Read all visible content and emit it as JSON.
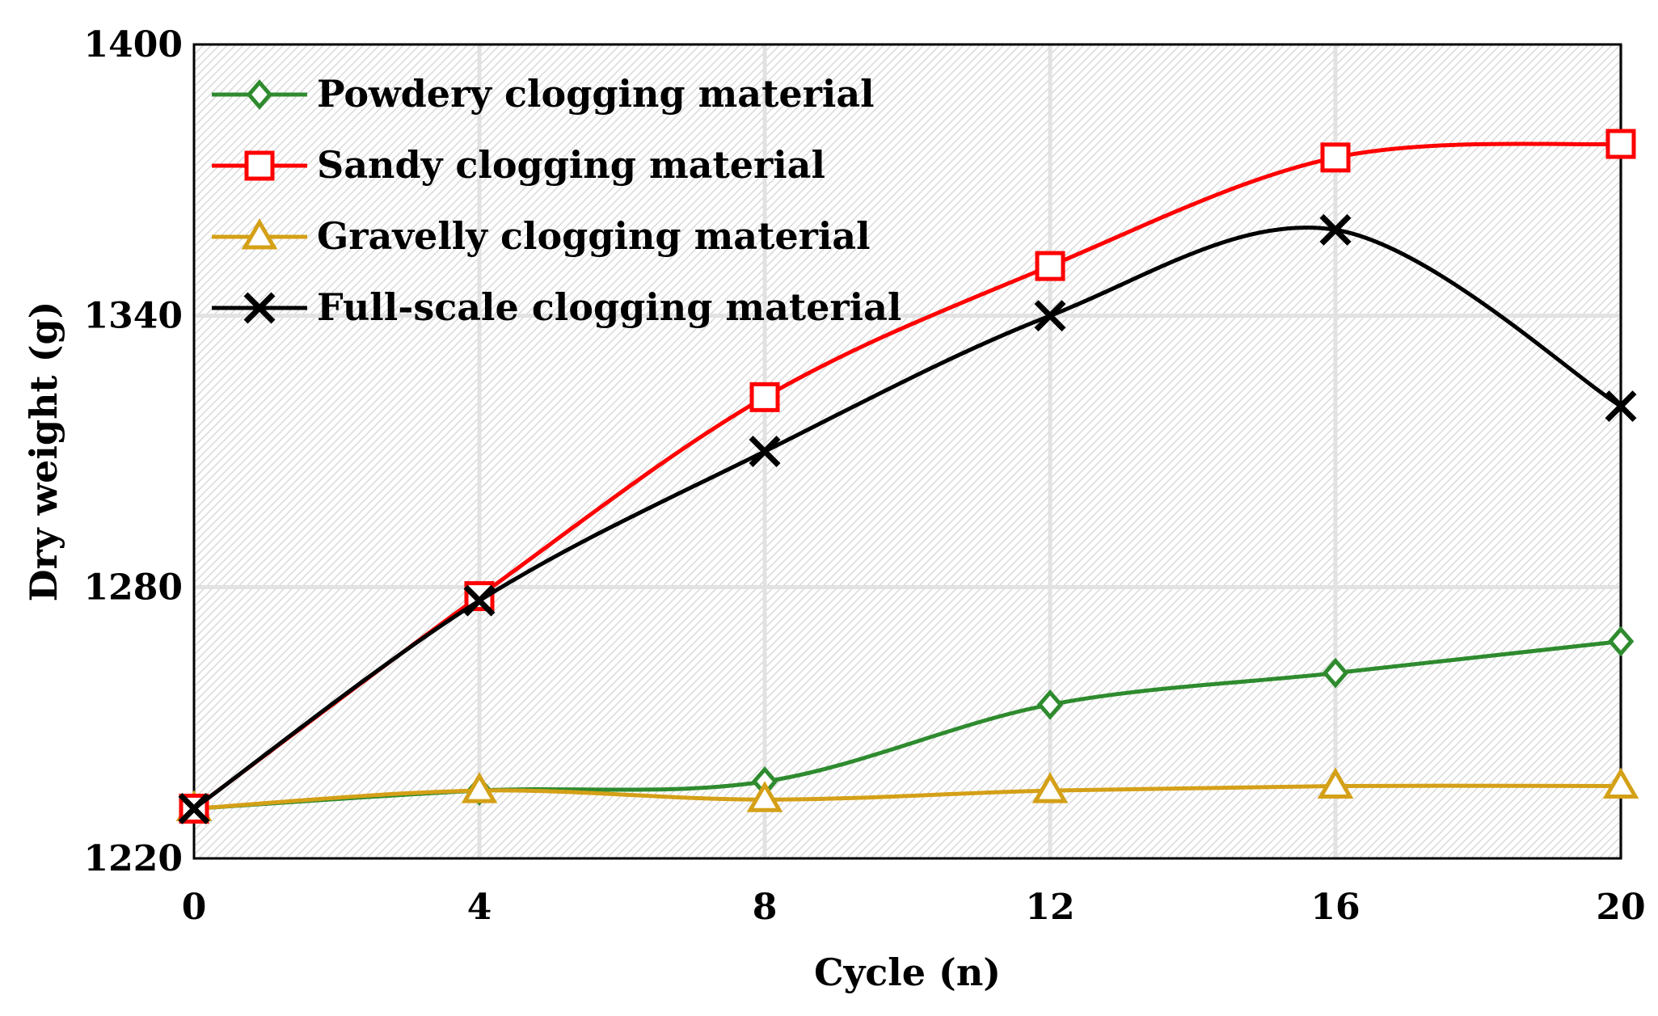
{
  "chart_data": {
    "type": "line",
    "title": "",
    "xlabel": "Cycle (n)",
    "ylabel": "Dry weight (g)",
    "x": [
      0,
      4,
      8,
      12,
      16,
      20
    ],
    "x_ticks": [
      "0",
      "4",
      "8",
      "12",
      "16",
      "20"
    ],
    "y_ticks": [
      "1220",
      "1280",
      "1340",
      "1400"
    ],
    "xlim": [
      0,
      20
    ],
    "ylim": [
      1220,
      1400
    ],
    "grid": true,
    "background": "hatched",
    "legend_position": "top-left",
    "smooth": true,
    "series": [
      {
        "name": "Powdery clogging material",
        "color": "#2e8b2e",
        "marker": "diamond",
        "values": [
          1231,
          1235,
          1237,
          1254,
          1261,
          1268
        ]
      },
      {
        "name": "Sandy clogging material",
        "color": "#ff0000",
        "marker": "square",
        "values": [
          1231,
          1278,
          1322,
          1351,
          1375,
          1378
        ]
      },
      {
        "name": "Gravelly clogging material",
        "color": "#d4a017",
        "marker": "triangle",
        "values": [
          1231,
          1235,
          1233,
          1235,
          1236,
          1236
        ]
      },
      {
        "name": "Full-scale clogging material",
        "color": "#000000",
        "marker": "x",
        "values": [
          1231,
          1277,
          1310,
          1340,
          1359,
          1320
        ]
      }
    ]
  }
}
